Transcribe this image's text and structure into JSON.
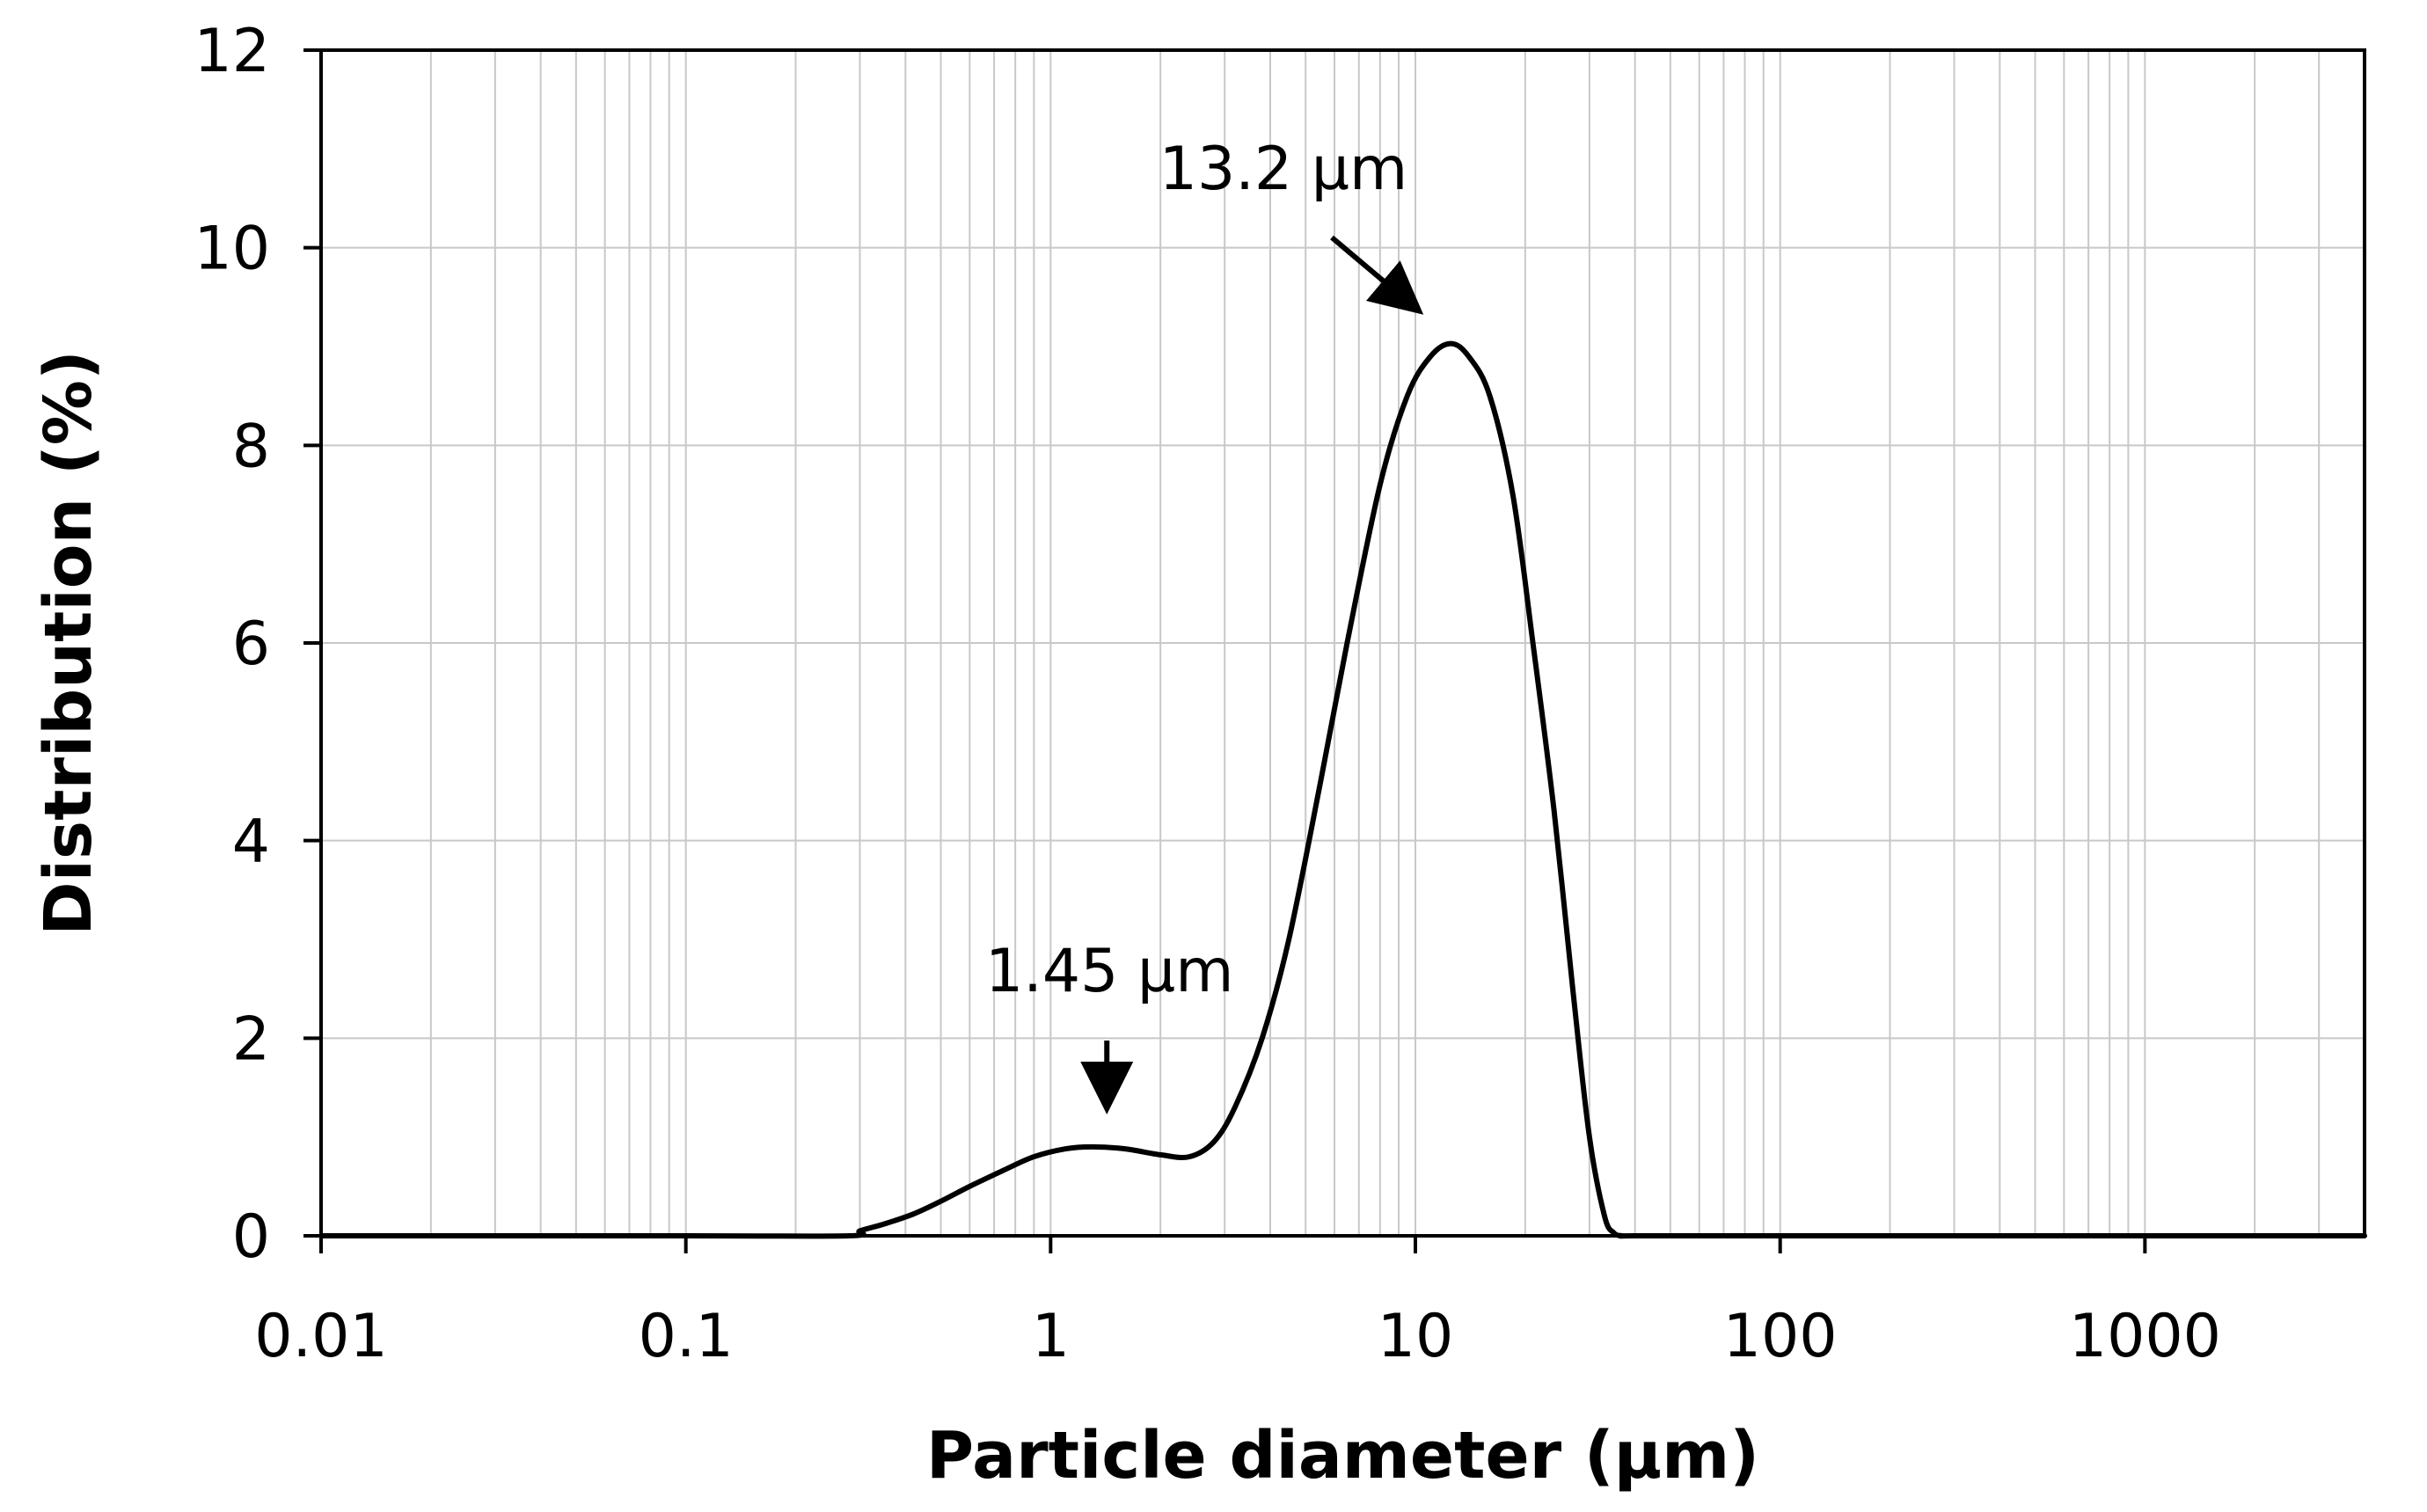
{
  "chart_data": {
    "type": "line",
    "title": "",
    "xlabel": "Particle diameter (µm)",
    "ylabel": "Distribution (%)",
    "x_scale": "log",
    "xlim": [
      0.01,
      4000
    ],
    "ylim": [
      0,
      12
    ],
    "x_ticks": [
      0.01,
      0.1,
      1,
      10,
      100,
      1000
    ],
    "x_tick_labels": [
      "0.01",
      "0.1",
      "1",
      "10",
      "100",
      "1000"
    ],
    "y_ticks": [
      0,
      2,
      4,
      6,
      8,
      10,
      12
    ],
    "y_tick_labels": [
      "0",
      "2",
      "4",
      "6",
      "8",
      "10",
      "12"
    ],
    "grid": true,
    "legend": "none",
    "line_color": "#000000",
    "grid_color": "#c8c8c8",
    "series": [
      {
        "x": [
          0.01,
          0.1,
          0.28,
          0.3,
          0.35,
          0.42,
          0.5,
          0.6,
          0.75,
          0.9,
          1.1,
          1.3,
          1.6,
          2.0,
          2.4,
          2.8,
          3.2,
          3.8,
          4.5,
          5.5,
          6.5,
          8.0,
          9.5,
          11.0,
          12.5,
          14.0,
          16.0,
          18.5,
          21.0,
          24.0,
          27.0,
          30.0,
          33.0,
          35.0,
          37.0,
          40.0,
          100.0,
          1000.0,
          4000.0
        ],
        "y": [
          0,
          0,
          0,
          0.05,
          0.12,
          0.22,
          0.35,
          0.5,
          0.67,
          0.8,
          0.88,
          0.9,
          0.88,
          0.82,
          0.8,
          0.95,
          1.3,
          2.0,
          3.0,
          4.6,
          6.0,
          7.6,
          8.5,
          8.9,
          9.03,
          8.9,
          8.5,
          7.5,
          6.0,
          4.3,
          2.5,
          1.0,
          0.2,
          0.03,
          0.0,
          0,
          0,
          0,
          0
        ]
      }
    ],
    "annotations": [
      {
        "text": "13.2 µm",
        "x": 13.2,
        "arrow": "diagonal"
      },
      {
        "text": "1.45 µm",
        "x": 1.45,
        "arrow": "down"
      }
    ]
  }
}
